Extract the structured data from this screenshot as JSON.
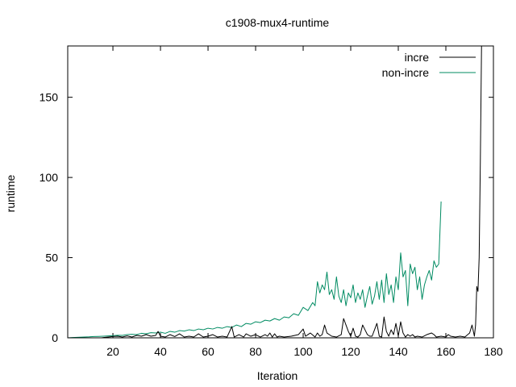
{
  "chart_data": {
    "type": "line",
    "title": "c1908-mux4-runtime",
    "xlabel": "Iteration",
    "ylabel": "runtime",
    "xlim": [
      1,
      180
    ],
    "ylim": [
      0,
      182
    ],
    "xticks": [
      20,
      40,
      60,
      80,
      100,
      120,
      140,
      160,
      180
    ],
    "yticks": [
      0,
      50,
      100,
      150
    ],
    "grid": false,
    "legend_position": "top-right",
    "series": [
      {
        "name": "incre",
        "color": "#000000",
        "points": [
          [
            1,
            0
          ],
          [
            5,
            0
          ],
          [
            10,
            0
          ],
          [
            15,
            0
          ],
          [
            18,
            0.5
          ],
          [
            20,
            0.8
          ],
          [
            22,
            1
          ],
          [
            24,
            0.5
          ],
          [
            26,
            1.2
          ],
          [
            28,
            0.5
          ],
          [
            30,
            1.5
          ],
          [
            32,
            1
          ],
          [
            34,
            2
          ],
          [
            36,
            1
          ],
          [
            38,
            1.5
          ],
          [
            39,
            4
          ],
          [
            40,
            1
          ],
          [
            42,
            0.5
          ],
          [
            44,
            2
          ],
          [
            46,
            0.8
          ],
          [
            48,
            2.5
          ],
          [
            50,
            0.5
          ],
          [
            52,
            1
          ],
          [
            54,
            0.5
          ],
          [
            56,
            2.5
          ],
          [
            58,
            0.5
          ],
          [
            60,
            1
          ],
          [
            62,
            2
          ],
          [
            64,
            0.5
          ],
          [
            66,
            1
          ],
          [
            68,
            0.5
          ],
          [
            70,
            7
          ],
          [
            71,
            0.5
          ],
          [
            73,
            2
          ],
          [
            75,
            0.5
          ],
          [
            76,
            2.5
          ],
          [
            78,
            1
          ],
          [
            80,
            2
          ],
          [
            82,
            0.5
          ],
          [
            84,
            2
          ],
          [
            85,
            1
          ],
          [
            86,
            3
          ],
          [
            87,
            0.5
          ],
          [
            88,
            2.5
          ],
          [
            89,
            0.5
          ],
          [
            90,
            1
          ],
          [
            92,
            0.5
          ],
          [
            95,
            1
          ],
          [
            98,
            2
          ],
          [
            100,
            5.5
          ],
          [
            101,
            1
          ],
          [
            103,
            3
          ],
          [
            105,
            0.5
          ],
          [
            106,
            3
          ],
          [
            107,
            1
          ],
          [
            108,
            2
          ],
          [
            109,
            8
          ],
          [
            110,
            3
          ],
          [
            111,
            2
          ],
          [
            112,
            1
          ],
          [
            114,
            0.5
          ],
          [
            116,
            2
          ],
          [
            117,
            12
          ],
          [
            118,
            8
          ],
          [
            119,
            4
          ],
          [
            120,
            1
          ],
          [
            121,
            6
          ],
          [
            122,
            1
          ],
          [
            123,
            0.5
          ],
          [
            124,
            2
          ],
          [
            125,
            8
          ],
          [
            126,
            5
          ],
          [
            127,
            2
          ],
          [
            128,
            1
          ],
          [
            129,
            1
          ],
          [
            130,
            5
          ],
          [
            131,
            9
          ],
          [
            132,
            1
          ],
          [
            133,
            0.5
          ],
          [
            134,
            13
          ],
          [
            135,
            4
          ],
          [
            136,
            1
          ],
          [
            137,
            5
          ],
          [
            138,
            2
          ],
          [
            139,
            9
          ],
          [
            140,
            1
          ],
          [
            141,
            10
          ],
          [
            142,
            3
          ],
          [
            143,
            0.5
          ],
          [
            144,
            2
          ],
          [
            145,
            1
          ],
          [
            146,
            2
          ],
          [
            147,
            0.5
          ],
          [
            148,
            1
          ],
          [
            150,
            0.5
          ],
          [
            152,
            2
          ],
          [
            154,
            3
          ],
          [
            155,
            2
          ],
          [
            156,
            0.5
          ],
          [
            158,
            1
          ],
          [
            160,
            0.5
          ],
          [
            161,
            2
          ],
          [
            162,
            1
          ],
          [
            164,
            0.5
          ],
          [
            166,
            1
          ],
          [
            168,
            0.5
          ],
          [
            170,
            3
          ],
          [
            171,
            8
          ],
          [
            172,
            1
          ],
          [
            172.5,
            8
          ],
          [
            173,
            32
          ],
          [
            173.5,
            29
          ],
          [
            174,
            50
          ],
          [
            174.5,
            110
          ],
          [
            175,
            182
          ]
        ]
      },
      {
        "name": "non-incre",
        "color": "#008b62",
        "points": [
          [
            1,
            0
          ],
          [
            3,
            0.2
          ],
          [
            5,
            0.3
          ],
          [
            8,
            0.5
          ],
          [
            10,
            0.6
          ],
          [
            12,
            0.8
          ],
          [
            14,
            0.9
          ],
          [
            16,
            1
          ],
          [
            18,
            1.2
          ],
          [
            20,
            1.4
          ],
          [
            22,
            1.6
          ],
          [
            24,
            1.5
          ],
          [
            26,
            2
          ],
          [
            28,
            2.2
          ],
          [
            30,
            2
          ],
          [
            32,
            2.8
          ],
          [
            34,
            2.5
          ],
          [
            36,
            3.2
          ],
          [
            38,
            3
          ],
          [
            40,
            3.5
          ],
          [
            42,
            2.8
          ],
          [
            44,
            4
          ],
          [
            46,
            3.5
          ],
          [
            48,
            4.5
          ],
          [
            50,
            4.2
          ],
          [
            52,
            5
          ],
          [
            54,
            4.5
          ],
          [
            56,
            5.5
          ],
          [
            58,
            5
          ],
          [
            60,
            6
          ],
          [
            62,
            5.5
          ],
          [
            64,
            6.5
          ],
          [
            66,
            6
          ],
          [
            68,
            7
          ],
          [
            70,
            6.5
          ],
          [
            72,
            8
          ],
          [
            74,
            7
          ],
          [
            76,
            9
          ],
          [
            78,
            8.5
          ],
          [
            80,
            10
          ],
          [
            82,
            9.5
          ],
          [
            84,
            11
          ],
          [
            86,
            10.5
          ],
          [
            88,
            12
          ],
          [
            90,
            11
          ],
          [
            92,
            13
          ],
          [
            94,
            12.5
          ],
          [
            96,
            15
          ],
          [
            98,
            14
          ],
          [
            100,
            19
          ],
          [
            102,
            17
          ],
          [
            104,
            22
          ],
          [
            105,
            20
          ],
          [
            106,
            35
          ],
          [
            107,
            28
          ],
          [
            108,
            33
          ],
          [
            109,
            30
          ],
          [
            110,
            41
          ],
          [
            111,
            27
          ],
          [
            112,
            30
          ],
          [
            113,
            24
          ],
          [
            114,
            38
          ],
          [
            115,
            26
          ],
          [
            116,
            22
          ],
          [
            117,
            30
          ],
          [
            118,
            20
          ],
          [
            119,
            28
          ],
          [
            120,
            25
          ],
          [
            121,
            33
          ],
          [
            122,
            22
          ],
          [
            123,
            28
          ],
          [
            124,
            24
          ],
          [
            125,
            30
          ],
          [
            126,
            19
          ],
          [
            127,
            26
          ],
          [
            128,
            32
          ],
          [
            129,
            21
          ],
          [
            130,
            26
          ],
          [
            131,
            35
          ],
          [
            132,
            24
          ],
          [
            133,
            36
          ],
          [
            134,
            22
          ],
          [
            135,
            40
          ],
          [
            136,
            27
          ],
          [
            137,
            33
          ],
          [
            138,
            22
          ],
          [
            139,
            38
          ],
          [
            140,
            30
          ],
          [
            141,
            53
          ],
          [
            142,
            38
          ],
          [
            143,
            42
          ],
          [
            144,
            20
          ],
          [
            145,
            46
          ],
          [
            146,
            40
          ],
          [
            147,
            44
          ],
          [
            148,
            30
          ],
          [
            149,
            38
          ],
          [
            150,
            24
          ],
          [
            151,
            33
          ],
          [
            152,
            38
          ],
          [
            153,
            42
          ],
          [
            154,
            36
          ],
          [
            155,
            48
          ],
          [
            156,
            44
          ],
          [
            157,
            46
          ],
          [
            158,
            85
          ]
        ]
      }
    ]
  }
}
